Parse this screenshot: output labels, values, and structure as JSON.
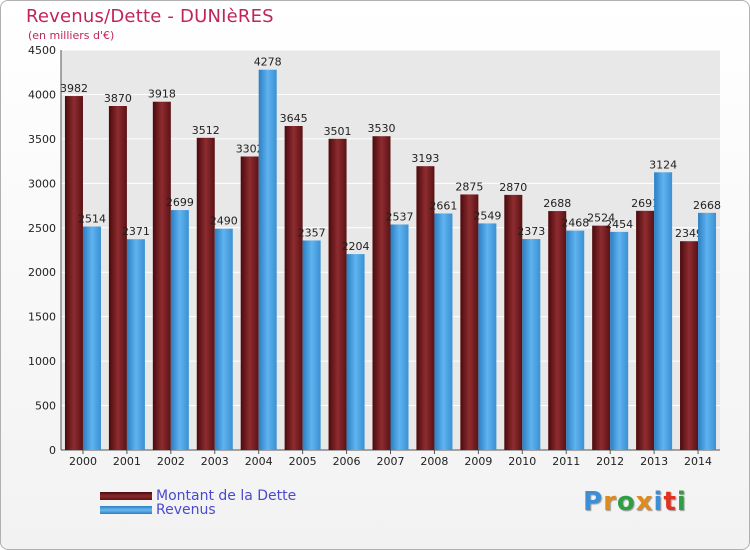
{
  "chart_data": {
    "type": "bar",
    "title": "Revenus/Dette - DUNIèRES",
    "subtitle": "(en milliers d'€)",
    "categories": [
      "2000",
      "2001",
      "2002",
      "2003",
      "2004",
      "2005",
      "2006",
      "2007",
      "2008",
      "2009",
      "2010",
      "2011",
      "2012",
      "2013",
      "2014"
    ],
    "series": [
      {
        "name": "Montant de la Dette",
        "color": "#8b2a2e",
        "values": [
          3982,
          3870,
          3918,
          3512,
          3302,
          3645,
          3501,
          3530,
          3193,
          2875,
          2870,
          2688,
          2524,
          2691,
          2349
        ]
      },
      {
        "name": "Revenus",
        "color": "#4aa3e6",
        "values": [
          2514,
          2371,
          2699,
          2490,
          4278,
          2357,
          2204,
          2537,
          2661,
          2549,
          2373,
          2468,
          2454,
          3124,
          2668
        ]
      }
    ],
    "ylim": [
      0,
      4500
    ],
    "yticks": [
      0,
      500,
      1000,
      1500,
      2000,
      2500,
      3000,
      3500,
      4000,
      4500
    ],
    "grid": true,
    "legend_position": "bottom-left"
  },
  "logo": {
    "letters": [
      "P",
      "r",
      "o",
      "x",
      "i",
      "t",
      "i"
    ],
    "colors": [
      "#3a8fd6",
      "#e08a1e",
      "#2f9e44",
      "#e08a1e",
      "#3a8fd6",
      "#e0321e",
      "#2f9e44"
    ]
  }
}
